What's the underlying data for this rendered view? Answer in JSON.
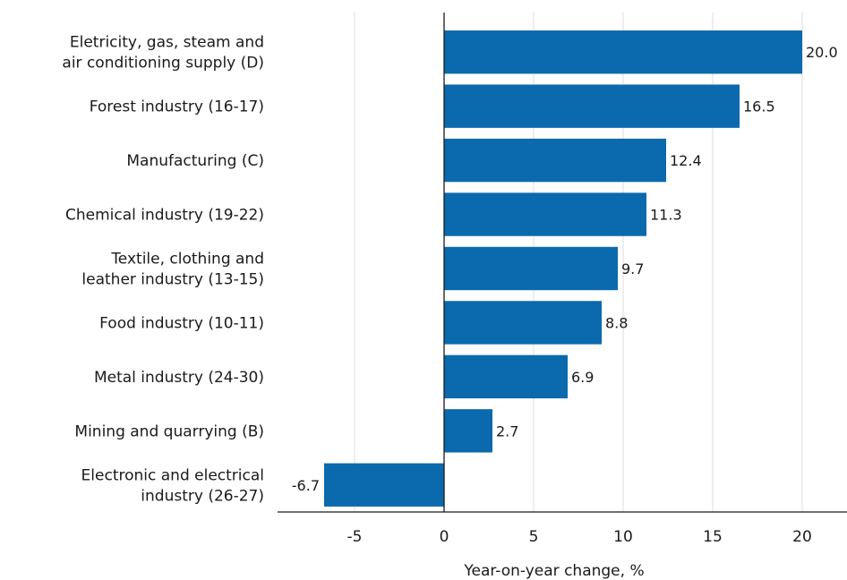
{
  "chart_data": {
    "type": "bar",
    "orientation": "horizontal",
    "categories": [
      [
        "Eletricity, gas, steam and",
        "air conditioning supply (D)"
      ],
      [
        "Forest industry (16-17)"
      ],
      [
        "Manufacturing (C)"
      ],
      [
        "Chemical industry (19-22)"
      ],
      [
        "Textile, clothing and",
        "leather industry (13-15)"
      ],
      [
        "Food industry (10-11)"
      ],
      [
        "Metal industry (24-30)"
      ],
      [
        "Mining and quarrying (B)"
      ],
      [
        "Electronic and electrical",
        "industry (26-27)"
      ]
    ],
    "values": [
      20.0,
      16.5,
      12.4,
      11.3,
      9.7,
      8.8,
      6.9,
      2.7,
      -6.7
    ],
    "value_labels": [
      "20.0",
      "16.5",
      "12.4",
      "11.3",
      "9.7",
      "8.8",
      "6.9",
      "2.7",
      "-6.7"
    ],
    "xlabel": "Year-on-year change, %",
    "xlim": [
      -9.3,
      22.5
    ],
    "xticks": [
      -5,
      0,
      5,
      10,
      15,
      20
    ],
    "xtick_labels": [
      "-5",
      "0",
      "5",
      "10",
      "15",
      "20"
    ],
    "grid": "vertical",
    "bar_color": "#0a6aad",
    "axis_color": "#1a1a1a"
  }
}
